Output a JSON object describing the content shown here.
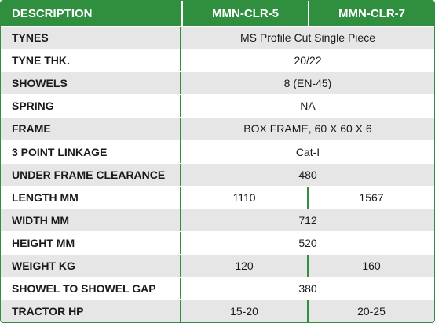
{
  "header": {
    "description": "DESCRIPTION",
    "col1": "MMN-CLR-5",
    "col2": "MMN-CLR-7"
  },
  "rows": [
    {
      "label": "TYNES",
      "value": "MS Profile Cut Single Piece"
    },
    {
      "label": "TYNE THK.",
      "value": "20/22"
    },
    {
      "label": "SHOWELS",
      "value": "8 (EN-45)"
    },
    {
      "label": "SPRING",
      "value": "NA"
    },
    {
      "label": "FRAME",
      "value": "BOX FRAME, 60 X 60 X 6"
    },
    {
      "label": "3 POINT LINKAGE",
      "value": "Cat-I"
    },
    {
      "label": "UNDER FRAME CLEARANCE",
      "value": "480"
    },
    {
      "label": "LENGTH MM",
      "v1": "1110",
      "v2": "1567"
    },
    {
      "label": "WIDTH MM",
      "value": "712"
    },
    {
      "label": "HEIGHT MM",
      "value": "520"
    },
    {
      "label": "WEIGHT KG",
      "v1": "120",
      "v2": "160"
    },
    {
      "label": "SHOWEL TO SHOWEL GAP",
      "value": "380"
    },
    {
      "label": "TRACTOR HP",
      "v1": "15-20",
      "v2": "20-25"
    }
  ],
  "colors": {
    "accent": "#2f8f3f",
    "row_alt": "#e6e6e6"
  }
}
